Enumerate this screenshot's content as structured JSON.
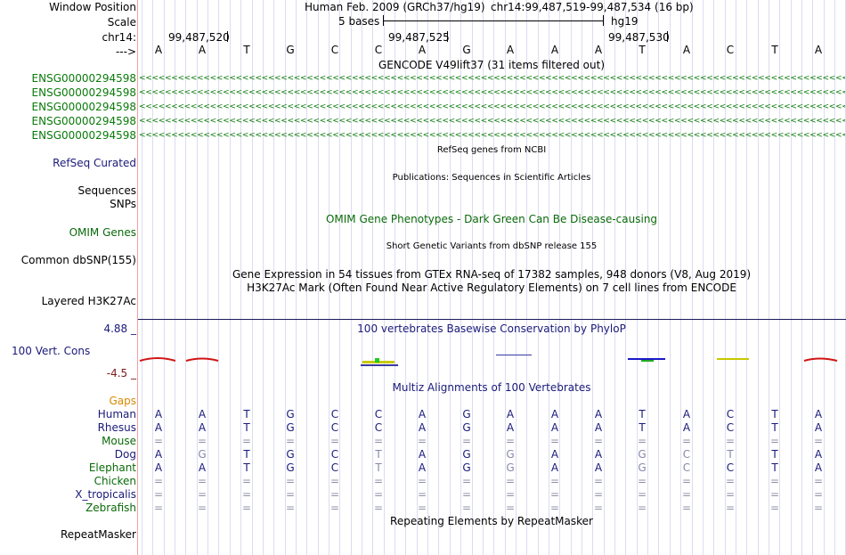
{
  "header": {
    "window_position_label": "Window Position",
    "scale_label": "Scale",
    "chrom_label": "chr14:",
    "arrow_label": "--->",
    "assembly": "Human Feb. 2009 (GRCh37/hg19)",
    "position": "chr14:99,487,519-99,487,534 (16 bp)",
    "scale_text": "5 bases",
    "scale_db": "hg19",
    "coords": [
      "99,487,520",
      "99,487,525",
      "99,487,530"
    ]
  },
  "bases": [
    "A",
    "A",
    "T",
    "G",
    "C",
    "C",
    "A",
    "G",
    "A",
    "A",
    "A",
    "T",
    "A",
    "C",
    "T",
    "A"
  ],
  "gencode": {
    "title": "GENCODE V49lift37 (31 items filtered out)",
    "items": [
      "ENSG00000294598",
      "ENSG00000294598",
      "ENSG00000294598",
      "ENSG00000294598",
      "ENSG00000294598"
    ],
    "arrows": "<<<<<<<<<<<<<<<<<<<<<<<<<<<<<<<<<<<<<<<<<<<<<<<<<<<<<<<<<<<<<<<<<<<<<<<<<<<<<<<<<<<<<<<<<<<<<<<<<<<<<<<<<<<<<<<<<<<<<<<<<<<<<<<<<<<<<<<<<<<<<<<<<<<<<<<<<<<<<<<<<<<<<<<<<<<<<<<<<<<<<<<<<<<<<<<<<<<<<<<<<<<<<<<<<<<<<<<<<<<<<<<<<<<<"
  },
  "tracks": {
    "refseq_title": "RefSeq genes from NCBI",
    "refseq_label": "RefSeq Curated",
    "pubs_title": "Publications: Sequences in Scientific Articles",
    "sequences_label": "Sequences",
    "snps_label": "SNPs",
    "omim_title": "OMIM Gene Phenotypes - Dark Green Can Be Disease-causing",
    "omim_label": "OMIM Genes",
    "dbsnp_title": "Short Genetic Variants from dbSNP release 155",
    "dbsnp_label": "Common dbSNP(155)",
    "gtex_title": "Gene Expression in 54 tissues from GTEx RNA-seq of 17382 samples, 948 donors (V8, Aug 2019)",
    "h3k27_title": "H3K27Ac Mark (Often Found Near Active Regulatory Elements) on 7 cell lines from ENCODE",
    "h3k27_label": "Layered H3K27Ac",
    "cons_max": "4.88 _",
    "cons_title": "100 vertebrates Basewise Conservation by PhyloP",
    "cons_label": "100 Vert. Cons",
    "cons_min": "-4.5 _",
    "multiz_title": "Multiz Alignments of 100 Vertebrates",
    "gaps_label": "Gaps",
    "rmsk_title": "Repeating Elements by RepeatMasker",
    "rmsk_label": "RepeatMasker"
  },
  "alignments": [
    {
      "species": "Human",
      "row": "AATGCCAGAAATACTA"
    },
    {
      "species": "Rhesus",
      "row": "AATGCCAGAAATACTA"
    },
    {
      "species": "Mouse",
      "row": "================"
    },
    {
      "species": "Dog",
      "row": "AGTGCTAGGAAGCTTA"
    },
    {
      "species": "Elephant",
      "row": "AATGCTAGGAAGCCTA"
    },
    {
      "species": "Chicken",
      "row": "================"
    },
    {
      "species": "X_tropicalis",
      "row": "================"
    },
    {
      "species": "Zebrafish",
      "row": "================"
    }
  ],
  "colors": {
    "label_blue": "#1a1a7a",
    "label_green": "#0a6a0a",
    "gaps_orange": "#d68a00",
    "cons_red": "#d21414",
    "cons_maroon": "#7a1a1a",
    "mismatch_gray": "#8888aa"
  }
}
